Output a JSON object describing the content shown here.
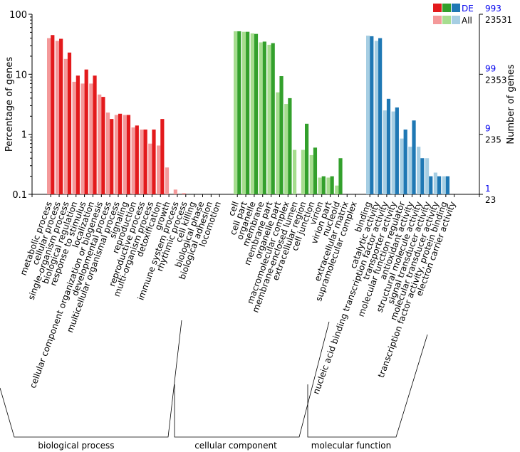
{
  "chart_data": {
    "type": "bar",
    "scale": "log",
    "ylabel": "Percentage of genes",
    "ylabel_right": "Number of genes",
    "ylim": [
      0.1,
      100
    ],
    "left_ticks": [
      "100",
      "10",
      "1",
      "0.1"
    ],
    "right_ticks": [
      {
        "de": "993",
        "all": "23531"
      },
      {
        "de": "99",
        "all": "2353"
      },
      {
        "de": "9",
        "all": "235"
      },
      {
        "de": "1",
        "all": "23"
      }
    ],
    "legend": {
      "de_label": "DE",
      "all_label": "All"
    },
    "colors": {
      "bp": {
        "de": "#e31a1c",
        "all": "#f4999a"
      },
      "cc": {
        "de": "#33a02c",
        "all": "#a6dd8f"
      },
      "mf": {
        "de": "#1f78b4",
        "all": "#a6cee3"
      }
    },
    "groups": [
      {
        "name": "biological process",
        "key": "bp",
        "categories": [
          {
            "label": "metabolic process",
            "de": 45,
            "all": 40
          },
          {
            "label": "cellular process",
            "de": 39,
            "all": 36
          },
          {
            "label": "single-organism process",
            "de": 23,
            "all": 18
          },
          {
            "label": "biological regulation",
            "de": 9.5,
            "all": 7.5
          },
          {
            "label": "response to stimulus",
            "de": 12,
            "all": 7
          },
          {
            "label": "localization",
            "de": 9.5,
            "all": 7
          },
          {
            "label": "cellular component organization or biogenesis",
            "de": 4.2,
            "all": 4.6
          },
          {
            "label": "developmental process",
            "de": 1.8,
            "all": 2.3
          },
          {
            "label": "multicellular organismal process",
            "de": 2.2,
            "all": 2.1
          },
          {
            "label": "signaling",
            "de": 2.1,
            "all": 2.1
          },
          {
            "label": "reproduction",
            "de": 1.4,
            "all": 1.3
          },
          {
            "label": "reproductive process",
            "de": 1.2,
            "all": 1.2
          },
          {
            "label": "multi-organism process",
            "de": 1.2,
            "all": 0.7
          },
          {
            "label": "detoxification",
            "de": 1.8,
            "all": 0.65
          },
          {
            "label": "growth",
            "de": null,
            "all": 0.28
          },
          {
            "label": "immune system process",
            "de": null,
            "all": 0.12
          },
          {
            "label": "rhythmic process",
            "de": null,
            "all": 0.105
          },
          {
            "label": "cell killing",
            "de": null,
            "all": null
          },
          {
            "label": "biological phase",
            "de": null,
            "all": null
          },
          {
            "label": "biological adhesion",
            "de": null,
            "all": null
          },
          {
            "label": "locomotion",
            "de": null,
            "all": null
          }
        ]
      },
      {
        "name": "cellular component",
        "key": "cc",
        "categories": [
          {
            "label": "cell",
            "de": 52,
            "all": 52
          },
          {
            "label": "cell part",
            "de": 51,
            "all": 51
          },
          {
            "label": "organelle",
            "de": 47,
            "all": 48
          },
          {
            "label": "membrane",
            "de": 35,
            "all": 34
          },
          {
            "label": "membrane part",
            "de": 33,
            "all": 31
          },
          {
            "label": "organelle part",
            "de": 9.3,
            "all": 5
          },
          {
            "label": "macromolecular complex",
            "de": 4,
            "all": 3.2
          },
          {
            "label": "membrane-enclosed lumen",
            "de": null,
            "all": 0.55
          },
          {
            "label": "extracellular region",
            "de": 1.5,
            "all": 0.55
          },
          {
            "label": "cell junction",
            "de": 0.6,
            "all": 0.45
          },
          {
            "label": "virion",
            "de": 0.2,
            "all": 0.19
          },
          {
            "label": "virion part",
            "de": 0.2,
            "all": 0.19
          },
          {
            "label": "nucleoid",
            "de": 0.4,
            "all": 0.14
          },
          {
            "label": "extracellular matrix",
            "de": null,
            "all": null
          },
          {
            "label": "supramolecular complex",
            "de": null,
            "all": null
          }
        ]
      },
      {
        "name": "molecular function",
        "key": "mf",
        "categories": [
          {
            "label": "binding",
            "de": 43,
            "all": 44
          },
          {
            "label": "catalytic activity",
            "de": 40,
            "all": 36
          },
          {
            "label": "nucleic acid binding transcription factor activity",
            "de": 3.9,
            "all": 2.5
          },
          {
            "label": "transporter activity",
            "de": 2.8,
            "all": 2.4
          },
          {
            "label": "molecular function regulator",
            "de": 1.2,
            "all": 0.85
          },
          {
            "label": "antioxidant activity",
            "de": 1.7,
            "all": 0.62
          },
          {
            "label": "structural molecule activity",
            "de": 0.4,
            "all": 0.62
          },
          {
            "label": "signal transducer activity",
            "de": 0.2,
            "all": 0.4
          },
          {
            "label": "molecular transducer activity",
            "de": 0.2,
            "all": 0.23
          },
          {
            "label": "transcription factor activity, protein binding",
            "de": 0.2,
            "all": 0.2
          },
          {
            "label": "electron carrier activity",
            "de": null,
            "all": null
          }
        ]
      }
    ]
  }
}
